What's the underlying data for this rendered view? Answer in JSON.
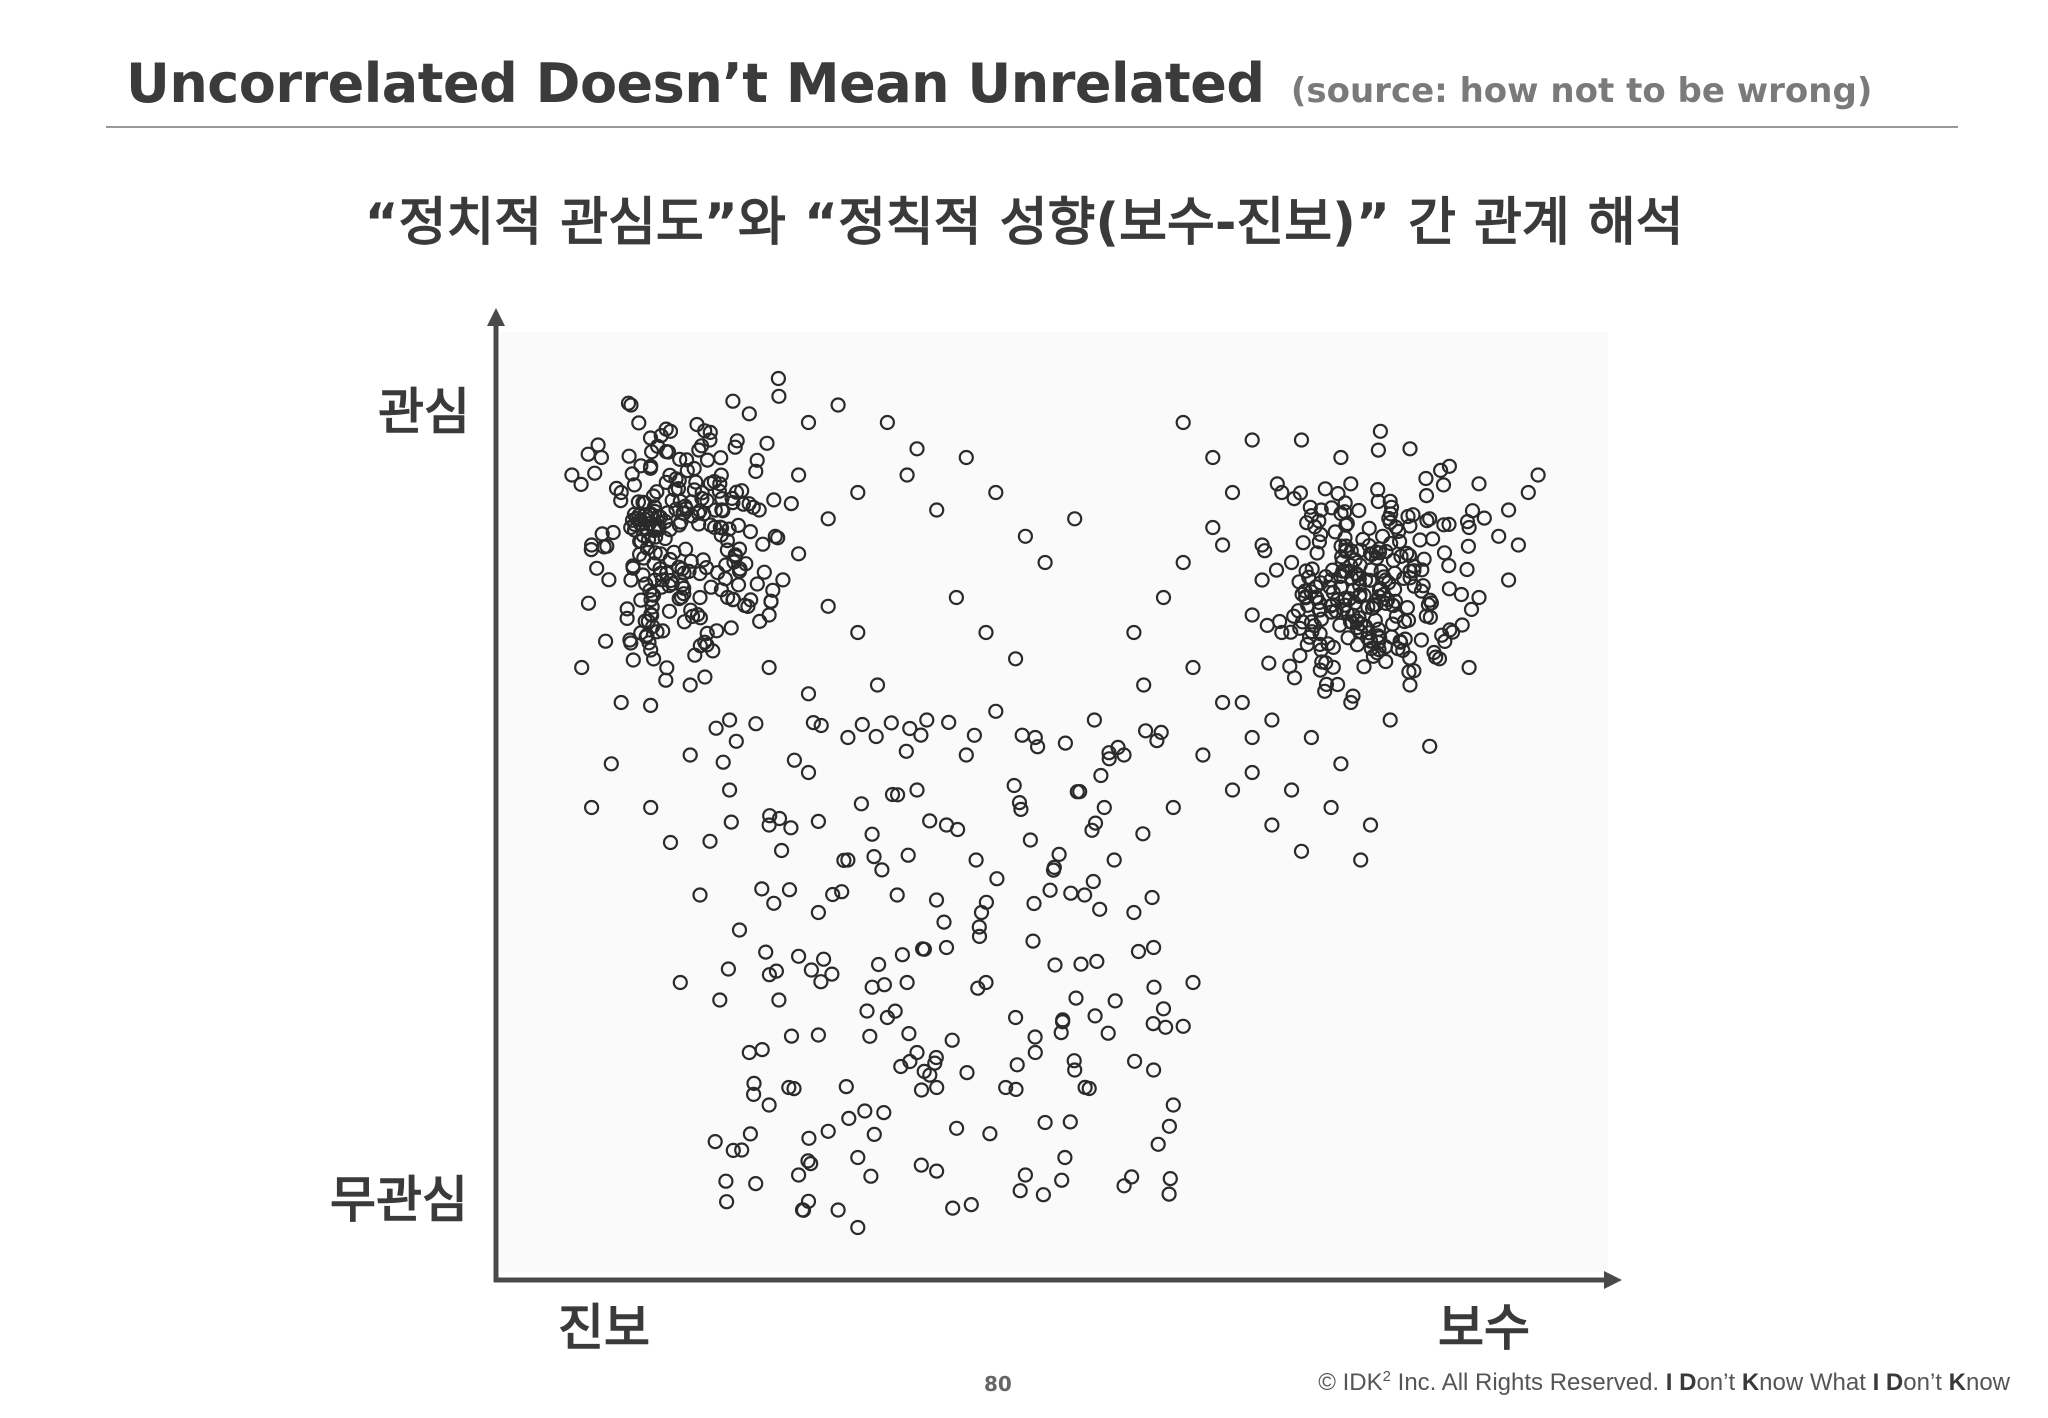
{
  "slide": {
    "title": "Uncorrelated Doesn’t Mean Unrelated",
    "source": "(source: how not to be wrong)",
    "subtitle": "“정치적 관심도”와 “정칙적 성향(보수-진보)” 간 관계 해석",
    "page_number": "80",
    "footer": {
      "copyright_pre": "© IDK",
      "copyright_sup": "2",
      "copyright_post": " Inc. All Rights Reserved.  ",
      "tagline": [
        {
          "text": "I",
          "bold": true
        },
        {
          "text": " ",
          "bold": false
        },
        {
          "text": "D",
          "bold": true
        },
        {
          "text": "on’t ",
          "bold": false
        },
        {
          "text": "K",
          "bold": true
        },
        {
          "text": "now What ",
          "bold": false
        },
        {
          "text": "I",
          "bold": true
        },
        {
          "text": " ",
          "bold": false
        },
        {
          "text": "D",
          "bold": true
        },
        {
          "text": "on’t ",
          "bold": false
        },
        {
          "text": "K",
          "bold": true
        },
        {
          "text": "now",
          "bold": false
        }
      ]
    }
  },
  "chart_data": {
    "type": "scatter",
    "title": "",
    "axes": {
      "y_top_label": "관심",
      "y_bottom_label": "무관심",
      "x_left_label": "진보",
      "x_right_label": "보수"
    },
    "xlim": [
      0,
      100
    ],
    "ylim": [
      0,
      100
    ],
    "marker": "hollow-circle",
    "marker_color": "#2a2a2a",
    "axis_color": "#4a4a4a",
    "clusters": [
      {
        "region": "top-left",
        "count": 240,
        "x_range": [
          0,
          25
        ],
        "y_range": [
          60,
          100
        ]
      },
      {
        "region": "top-right",
        "count": 240,
        "x_range": [
          68,
          95
        ],
        "y_range": [
          58,
          92
        ]
      },
      {
        "region": "lower-middle",
        "count": 160,
        "x_range": [
          15,
          62
        ],
        "y_range": [
          2,
          60
        ]
      }
    ],
    "points": [
      [
        7,
        96
      ],
      [
        11,
        93
      ],
      [
        15,
        92
      ],
      [
        19,
        95
      ],
      [
        22,
        97
      ],
      [
        25,
        94
      ],
      [
        28,
        96
      ],
      [
        33,
        94
      ],
      [
        36,
        91
      ],
      [
        1,
        88
      ],
      [
        4,
        90
      ],
      [
        6,
        86
      ],
      [
        9,
        89
      ],
      [
        12,
        85
      ],
      [
        16,
        87
      ],
      [
        20,
        84
      ],
      [
        24,
        88
      ],
      [
        27,
        83
      ],
      [
        30,
        86
      ],
      [
        3,
        80
      ],
      [
        7,
        76
      ],
      [
        10,
        79
      ],
      [
        14,
        74
      ],
      [
        18,
        77
      ],
      [
        21,
        72
      ],
      [
        24,
        79
      ],
      [
        27,
        73
      ],
      [
        30,
        70
      ],
      [
        2,
        66
      ],
      [
        6,
        62
      ],
      [
        9,
        68
      ],
      [
        13,
        64
      ],
      [
        17,
        60
      ],
      [
        21,
        66
      ],
      [
        25,
        63
      ],
      [
        29,
        58
      ],
      [
        32,
        64
      ],
      [
        5,
        55
      ],
      [
        9,
        50
      ],
      [
        13,
        56
      ],
      [
        17,
        52
      ],
      [
        21,
        48
      ],
      [
        25,
        54
      ],
      [
        3,
        50
      ],
      [
        11,
        46
      ],
      [
        35,
        88
      ],
      [
        38,
        84
      ],
      [
        41,
        90
      ],
      [
        44,
        86
      ],
      [
        47,
        81
      ],
      [
        49,
        78
      ],
      [
        52,
        83
      ],
      [
        40,
        74
      ],
      [
        43,
        70
      ],
      [
        46,
        67
      ],
      [
        37,
        60
      ],
      [
        41,
        56
      ],
      [
        44,
        61
      ],
      [
        48,
        58
      ],
      [
        36,
        52
      ],
      [
        39,
        48
      ],
      [
        42,
        44
      ],
      [
        34,
        40
      ],
      [
        29,
        44
      ],
      [
        26,
        38
      ],
      [
        24,
        33
      ],
      [
        22,
        28
      ],
      [
        26,
        24
      ],
      [
        23,
        18
      ],
      [
        27,
        13
      ],
      [
        30,
        10
      ],
      [
        14,
        40
      ],
      [
        18,
        36
      ],
      [
        12,
        30
      ],
      [
        16,
        28
      ],
      [
        19,
        22
      ],
      [
        21,
        16
      ],
      [
        24,
        8
      ],
      [
        25,
        5
      ],
      [
        28,
        4
      ],
      [
        30,
        2
      ],
      [
        33,
        26
      ],
      [
        36,
        22
      ],
      [
        38,
        18
      ],
      [
        35,
        30
      ],
      [
        39,
        34
      ],
      [
        43,
        30
      ],
      [
        46,
        26
      ],
      [
        48,
        22
      ],
      [
        45,
        18
      ],
      [
        49,
        14
      ],
      [
        51,
        10
      ],
      [
        47,
        8
      ],
      [
        52,
        20
      ],
      [
        50,
        32
      ],
      [
        53,
        40
      ],
      [
        55,
        50
      ],
      [
        57,
        56
      ],
      [
        54,
        60
      ],
      [
        59,
        64
      ],
      [
        56,
        44
      ],
      [
        58,
        38
      ],
      [
        60,
        34
      ],
      [
        61,
        27
      ],
      [
        63,
        25
      ],
      [
        60,
        20
      ],
      [
        62,
        16
      ],
      [
        64,
        30
      ],
      [
        58,
        70
      ],
      [
        61,
        74
      ],
      [
        63,
        78
      ],
      [
        66,
        82
      ],
      [
        68,
        86
      ],
      [
        66,
        90
      ],
      [
        63,
        94
      ],
      [
        70,
        92
      ],
      [
        67,
        80
      ],
      [
        71,
        76
      ],
      [
        64,
        66
      ],
      [
        67,
        62
      ],
      [
        70,
        58
      ],
      [
        68,
        52
      ],
      [
        72,
        48
      ],
      [
        65,
        56
      ],
      [
        62,
        50
      ],
      [
        75,
        92
      ],
      [
        79,
        90
      ],
      [
        83,
        93
      ],
      [
        86,
        91
      ],
      [
        90,
        89
      ],
      [
        93,
        87
      ],
      [
        96,
        84
      ],
      [
        98,
        86
      ],
      [
        99,
        88
      ],
      [
        97,
        80
      ],
      [
        73,
        86
      ],
      [
        77,
        84
      ],
      [
        80,
        87
      ],
      [
        84,
        85
      ],
      [
        88,
        83
      ],
      [
        92,
        82
      ],
      [
        95,
        81
      ],
      [
        71,
        80
      ],
      [
        74,
        78
      ],
      [
        78,
        76
      ],
      [
        82,
        79
      ],
      [
        86,
        77
      ],
      [
        90,
        75
      ],
      [
        93,
        74
      ],
      [
        96,
        76
      ],
      [
        70,
        72
      ],
      [
        73,
        70
      ],
      [
        77,
        68
      ],
      [
        81,
        71
      ],
      [
        85,
        69
      ],
      [
        89,
        67
      ],
      [
        92,
        66
      ],
      [
        69,
        62
      ],
      [
        72,
        60
      ],
      [
        76,
        58
      ],
      [
        80,
        62
      ],
      [
        84,
        60
      ],
      [
        88,
        57
      ],
      [
        86,
        64
      ],
      [
        70,
        54
      ],
      [
        74,
        52
      ],
      [
        78,
        50
      ],
      [
        82,
        48
      ],
      [
        79,
        55
      ],
      [
        75,
        45
      ],
      [
        81,
        44
      ]
    ]
  }
}
